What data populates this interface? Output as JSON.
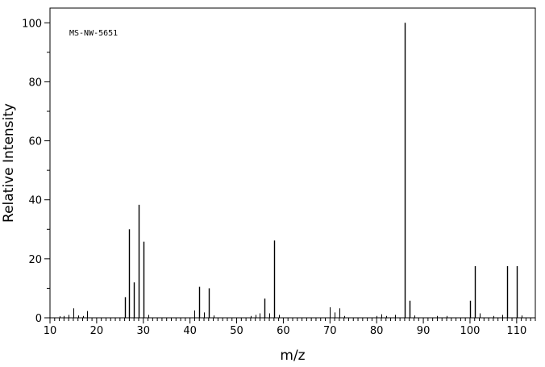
{
  "chart_data": {
    "type": "bar",
    "annotation": "MS-NW-5651",
    "xlabel": "m/z",
    "ylabel": "Relative Intensity",
    "xlim": [
      10,
      114
    ],
    "ylim": [
      0,
      105
    ],
    "xticks": [
      10,
      20,
      30,
      40,
      50,
      60,
      70,
      80,
      90,
      100,
      110
    ],
    "yticks": [
      0,
      20,
      40,
      60,
      80,
      100
    ],
    "grid": false,
    "legend": "none",
    "color": "#000000",
    "peaks": {
      "mz": [
        12,
        13,
        14,
        15,
        16,
        17,
        18,
        26,
        27,
        28,
        29,
        30,
        31,
        41,
        42,
        43,
        44,
        45,
        53,
        54,
        55,
        56,
        57,
        58,
        59,
        70,
        71,
        72,
        73,
        80,
        81,
        82,
        84,
        86,
        87,
        88,
        93,
        95,
        100,
        101,
        102,
        105,
        107,
        108,
        110,
        111
      ],
      "intensity": [
        0.5,
        0.6,
        1.0,
        3.2,
        0.8,
        0.6,
        2.3,
        7.0,
        30.0,
        12.0,
        38.3,
        25.8,
        1.0,
        2.5,
        10.5,
        1.8,
        10.0,
        0.8,
        0.6,
        1.0,
        1.5,
        6.5,
        1.5,
        26.2,
        1.0,
        3.6,
        1.8,
        3.2,
        0.6,
        0.6,
        1.2,
        0.6,
        1.0,
        100.0,
        5.8,
        0.8,
        0.6,
        0.6,
        5.8,
        17.5,
        1.5,
        0.6,
        1.0,
        17.5,
        17.5,
        0.8
      ]
    }
  }
}
